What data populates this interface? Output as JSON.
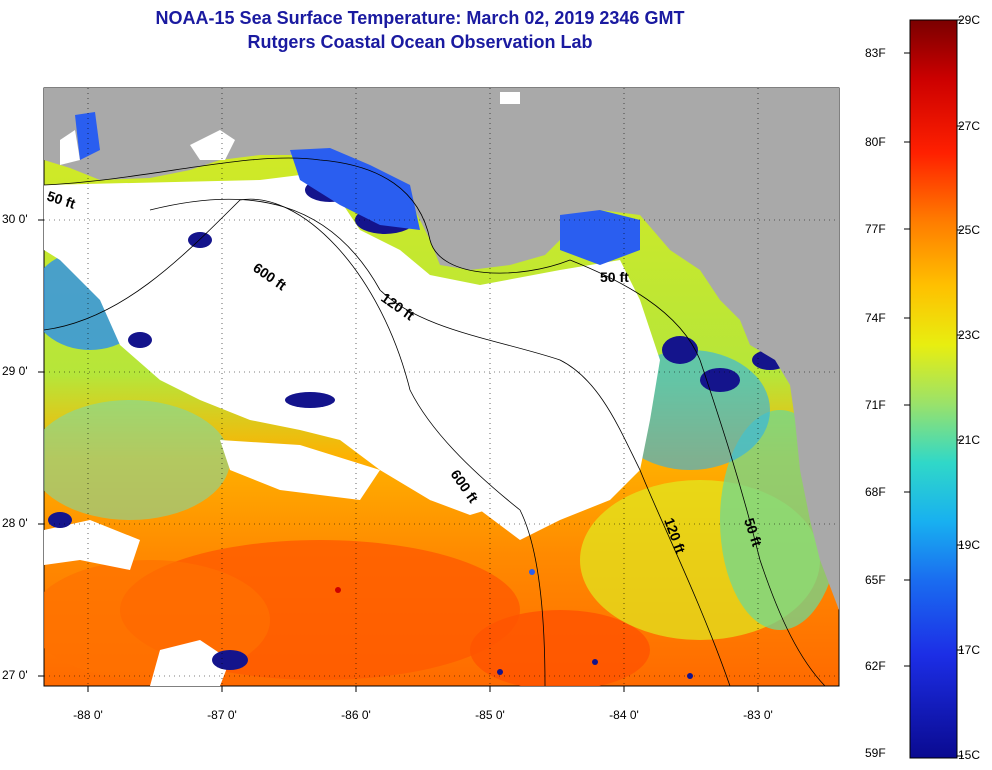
{
  "title": {
    "line1": "NOAA-15 Sea Surface Temperature:  March 02, 2019 2346 GMT",
    "line2": "Rutgers Coastal Ocean Observation Lab"
  },
  "map": {
    "land_color": "#a9a9a9",
    "cloud_color": "#ffffff",
    "lat_labels": [
      "30 0'",
      "29 0'",
      "28 0'",
      "27 0'"
    ],
    "lon_labels": [
      "-88 0'",
      "-87 0'",
      "-86 0'",
      "-85 0'",
      "-84 0'",
      "-83 0'"
    ],
    "contours": [
      {
        "label": "50 ft"
      },
      {
        "label": "600 ft"
      },
      {
        "label": "120 ft"
      },
      {
        "label": "50 ft"
      },
      {
        "label": "600 ft"
      },
      {
        "label": "120 ft"
      },
      {
        "label": "50 ft"
      }
    ]
  },
  "colorbar": {
    "fahrenheit_labels": [
      "83F",
      "80F",
      "77F",
      "74F",
      "71F",
      "68F",
      "65F",
      "62F",
      "59F"
    ],
    "celsius_labels": [
      "29C",
      "27C",
      "25C",
      "23C",
      "21C",
      "19C",
      "17C",
      "15C"
    ],
    "colors": [
      "#7a0000",
      "#cc0000",
      "#ff2000",
      "#ff7a00",
      "#ffc000",
      "#e8ee10",
      "#9ae26a",
      "#30d8c8",
      "#18b0f0",
      "#1a6cf0",
      "#1c2ee6",
      "#0a0a90"
    ]
  }
}
